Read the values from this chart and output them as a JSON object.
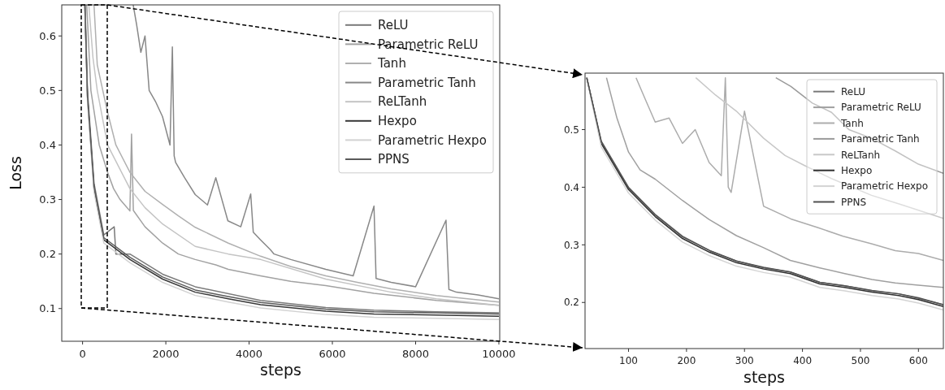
{
  "chart_data": [
    {
      "type": "line",
      "xlabel": "steps",
      "ylabel": "Loss",
      "xlim": [
        -500,
        10020
      ],
      "ylim": [
        0.04,
        0.657
      ],
      "xticks": [
        0,
        2000,
        4000,
        6000,
        8000,
        10000
      ],
      "yticks": [
        0.1,
        0.2,
        0.3,
        0.4,
        0.5,
        0.6
      ],
      "legend": "top right",
      "series": [
        {
          "name": "ReLU",
          "color": "#7a7a7a",
          "x": [
            60,
            118,
            275,
            510,
            760,
            800,
            1137,
            1922,
            2706,
            4275,
            5843,
            7000,
            8500,
            10000
          ],
          "values": [
            0.657,
            0.5,
            0.33,
            0.235,
            0.25,
            0.2,
            0.2,
            0.163,
            0.14,
            0.115,
            0.102,
            0.097,
            0.094,
            0.092
          ]
        },
        {
          "name": "Parametric ReLU",
          "color": "#a2a2a2",
          "x": [
            100,
            200,
            400,
            600,
            745,
            900,
            1137,
            1176,
            1220,
            1500,
            1922,
            2300,
            2706,
            3200,
            3500,
            4275,
            5000,
            5843,
            7000,
            8500,
            10000
          ],
          "values": [
            0.657,
            0.5,
            0.4,
            0.35,
            0.32,
            0.3,
            0.279,
            0.42,
            0.28,
            0.25,
            0.22,
            0.2,
            0.19,
            0.18,
            0.172,
            0.16,
            0.15,
            0.142,
            0.128,
            0.115,
            0.106
          ]
        },
        {
          "name": "Tanh",
          "color": "#b0b0b0",
          "x": [
            275,
            353,
            588,
            800,
            1137,
            1500,
            1922,
            2300,
            2706,
            3500,
            4275,
            5000,
            5843,
            6600,
            7412,
            8500,
            10000
          ],
          "values": [
            0.657,
            0.547,
            0.464,
            0.4,
            0.35,
            0.315,
            0.291,
            0.27,
            0.249,
            0.22,
            0.196,
            0.177,
            0.16,
            0.148,
            0.136,
            0.124,
            0.112
          ]
        },
        {
          "name": "Parametric Tanh",
          "color": "#888888",
          "x": [
            1216,
            1300,
            1400,
            1500,
            1600,
            1750,
            1920,
            2100,
            2157,
            2200,
            2235,
            2450,
            2706,
            3000,
            3200,
            3490,
            3800,
            4039,
            4100,
            4275,
            4510,
            4600,
            5000,
            5843,
            6500,
            7000,
            7050,
            7412,
            8000,
            8730,
            8800,
            8980,
            9500,
            10000
          ],
          "values": [
            0.657,
            0.62,
            0.57,
            0.6,
            0.5,
            0.48,
            0.452,
            0.4,
            0.58,
            0.38,
            0.368,
            0.34,
            0.309,
            0.29,
            0.34,
            0.261,
            0.25,
            0.31,
            0.24,
            0.226,
            0.208,
            0.2,
            0.19,
            0.172,
            0.16,
            0.288,
            0.155,
            0.148,
            0.14,
            0.262,
            0.135,
            0.13,
            0.125,
            0.118
          ]
        },
        {
          "name": "ReLTanh",
          "color": "#c4c4c4",
          "x": [
            150,
            250,
            353,
            600,
            1137,
            1500,
            1922,
            2706,
            3500,
            4275,
            5843,
            7412,
            8500,
            10000
          ],
          "values": [
            0.657,
            0.56,
            0.5,
            0.4,
            0.32,
            0.285,
            0.255,
            0.214,
            0.2,
            0.19,
            0.154,
            0.13,
            0.118,
            0.106
          ]
        },
        {
          "name": "Hexpo",
          "color": "#383838",
          "x": [
            55,
            118,
            275,
            510,
            1137,
            1922,
            2706,
            3500,
            4275,
            5843,
            7000,
            8500,
            10000
          ],
          "values": [
            0.657,
            0.487,
            0.32,
            0.226,
            0.19,
            0.154,
            0.13,
            0.118,
            0.107,
            0.095,
            0.09,
            0.088,
            0.086
          ]
        },
        {
          "name": "Parametric Hexpo",
          "color": "#d2d2d2",
          "x": [
            55,
            118,
            275,
            510,
            1137,
            1922,
            2706,
            3500,
            4275,
            5843,
            7000,
            8500,
            10000
          ],
          "values": [
            0.657,
            0.48,
            0.314,
            0.22,
            0.184,
            0.148,
            0.124,
            0.112,
            0.101,
            0.089,
            0.084,
            0.082,
            0.08
          ]
        },
        {
          "name": "PPNS",
          "color": "#5a5a5a",
          "x": [
            55,
            118,
            275,
            510,
            1137,
            1922,
            2706,
            3500,
            4275,
            5843,
            7000,
            8500,
            10000
          ],
          "values": [
            0.657,
            0.49,
            0.324,
            0.23,
            0.194,
            0.158,
            0.134,
            0.122,
            0.111,
            0.099,
            0.094,
            0.092,
            0.09
          ]
        }
      ]
    },
    {
      "type": "line",
      "xlabel": "steps",
      "xlim": [
        25,
        643
      ],
      "ylim": [
        0.12,
        0.598
      ],
      "xticks": [
        100,
        200,
        300,
        400,
        500,
        600
      ],
      "yticks": [
        0.2,
        0.3,
        0.4,
        0.5
      ],
      "legend": "top right",
      "series": [
        {
          "name": "ReLU",
          "color": "#7a7a7a",
          "x": [
            28,
            53,
            100,
            146,
            193,
            240,
            286,
            333,
            379,
            430,
            473,
            520,
            566,
            600,
            643
          ],
          "values": [
            0.59,
            0.48,
            0.4,
            0.353,
            0.315,
            0.29,
            0.272,
            0.26,
            0.253,
            0.235,
            0.229,
            0.22,
            0.215,
            0.207,
            0.196
          ]
        },
        {
          "name": "Parametric ReLU",
          "color": "#a0a0a0",
          "x": [
            62,
            80,
            100,
            120,
            146,
            193,
            239,
            286,
            333,
            379,
            430,
            473,
            520,
            560,
            600,
            643
          ],
          "values": [
            0.59,
            0.52,
            0.461,
            0.43,
            0.414,
            0.377,
            0.344,
            0.316,
            0.295,
            0.273,
            0.26,
            0.25,
            0.24,
            0.234,
            0.23,
            0.226
          ]
        },
        {
          "name": "Tanh",
          "color": "#acacac",
          "x": [
            113,
            130,
            146,
            170,
            193,
            215,
            239,
            260,
            267,
            272,
            277,
            300,
            333,
            380,
            426,
            470,
            519,
            560,
            600,
            643
          ],
          "values": [
            0.59,
            0.55,
            0.513,
            0.52,
            0.476,
            0.5,
            0.443,
            0.42,
            0.59,
            0.4,
            0.391,
            0.532,
            0.367,
            0.345,
            0.33,
            0.315,
            0.302,
            0.29,
            0.285,
            0.273
          ]
        },
        {
          "name": "Parametric Tanh",
          "color": "#9a9a9a",
          "x": [
            354,
            380,
            417,
            450,
            480,
            519,
            560,
            600,
            643
          ],
          "values": [
            0.59,
            0.575,
            0.546,
            0.53,
            0.5,
            0.485,
            0.463,
            0.44,
            0.424
          ]
        },
        {
          "name": "ReLTanh",
          "color": "#c8c8c8",
          "x": [
            216,
            250,
            286,
            333,
            370,
            403,
            450,
            519,
            570,
            600,
            643
          ],
          "values": [
            0.59,
            0.56,
            0.532,
            0.485,
            0.455,
            0.438,
            0.415,
            0.386,
            0.37,
            0.36,
            0.346
          ]
        },
        {
          "name": "Hexpo",
          "color": "#303030",
          "x": [
            28,
            53,
            100,
            146,
            193,
            240,
            286,
            333,
            379,
            430,
            473,
            520,
            566,
            600,
            643
          ],
          "values": [
            0.59,
            0.476,
            0.396,
            0.349,
            0.311,
            0.287,
            0.269,
            0.258,
            0.25,
            0.232,
            0.226,
            0.218,
            0.212,
            0.205,
            0.193
          ]
        },
        {
          "name": "Parametric Hexpo",
          "color": "#d4d4d4",
          "x": [
            28,
            53,
            100,
            146,
            193,
            240,
            286,
            333,
            379,
            430,
            473,
            520,
            566,
            600,
            643
          ],
          "values": [
            0.59,
            0.47,
            0.39,
            0.343,
            0.305,
            0.281,
            0.263,
            0.252,
            0.244,
            0.226,
            0.22,
            0.212,
            0.206,
            0.199,
            0.187
          ]
        },
        {
          "name": "PPNS",
          "color": "#505050",
          "x": [
            28,
            53,
            100,
            146,
            193,
            240,
            286,
            333,
            379,
            430,
            473,
            520,
            566,
            600,
            643
          ],
          "values": [
            0.59,
            0.479,
            0.399,
            0.352,
            0.314,
            0.29,
            0.272,
            0.261,
            0.253,
            0.235,
            0.229,
            0.221,
            0.215,
            0.208,
            0.196
          ]
        }
      ]
    }
  ]
}
